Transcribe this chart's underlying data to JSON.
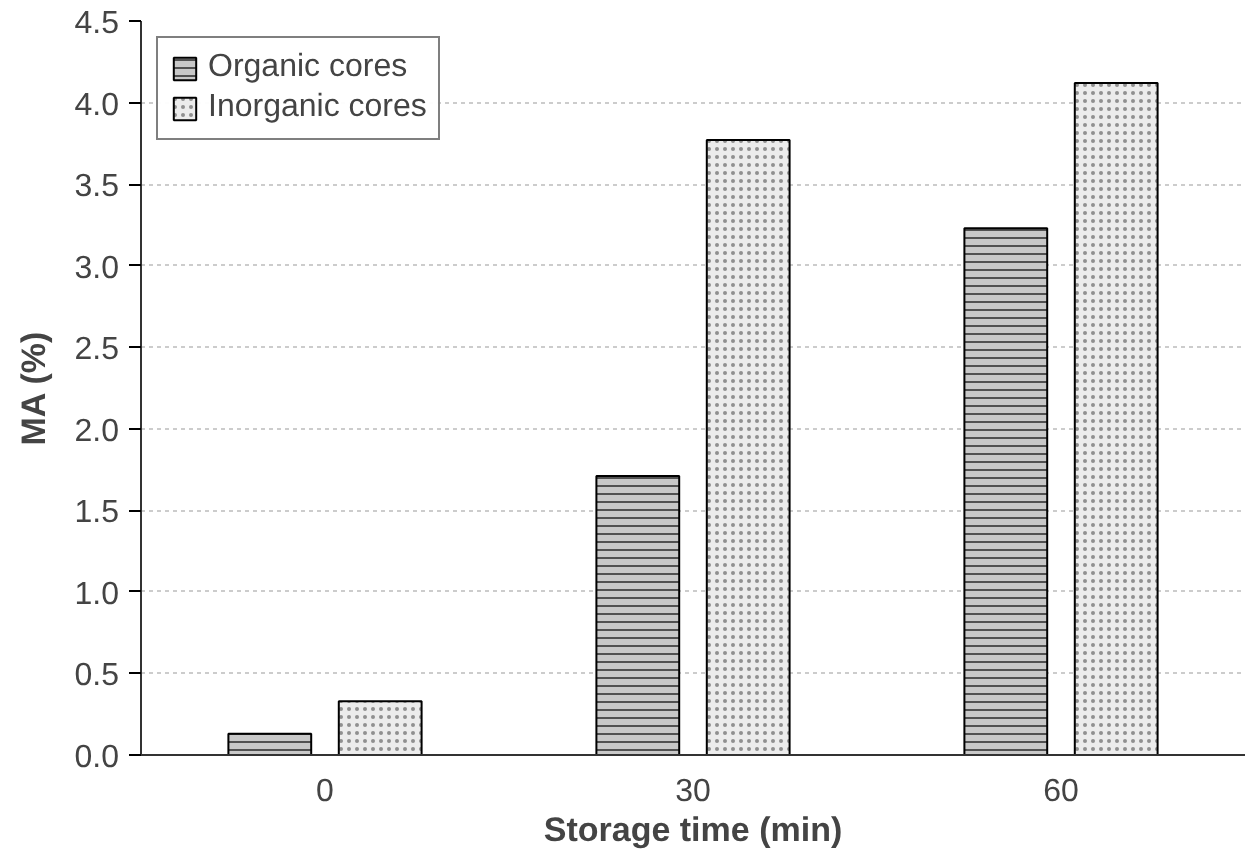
{
  "chart_data": {
    "type": "bar",
    "xlabel": "Storage time (min)",
    "ylabel": "MA (%)",
    "categories": [
      "0",
      "30",
      "60"
    ],
    "series": [
      {
        "name": "Organic cores",
        "color": "#c8c8c8",
        "values": [
          0.13,
          1.71,
          3.23
        ]
      },
      {
        "name": "Inorganic cores",
        "color": "#ececec",
        "values": [
          0.33,
          3.77,
          4.12
        ]
      }
    ],
    "ylim": [
      0,
      4.5
    ],
    "yticks": [
      {
        "value": 0,
        "label": "0.0"
      },
      0.5,
      {
        "value": 1,
        "label": "1.0"
      },
      1.5,
      {
        "value": 2,
        "label": "2.0"
      },
      2.5,
      {
        "value": 3,
        "label": "3.0"
      },
      3.5,
      {
        "value": 4,
        "label": "4.0"
      },
      4.5
    ],
    "grid": "y",
    "legend": "top left"
  }
}
